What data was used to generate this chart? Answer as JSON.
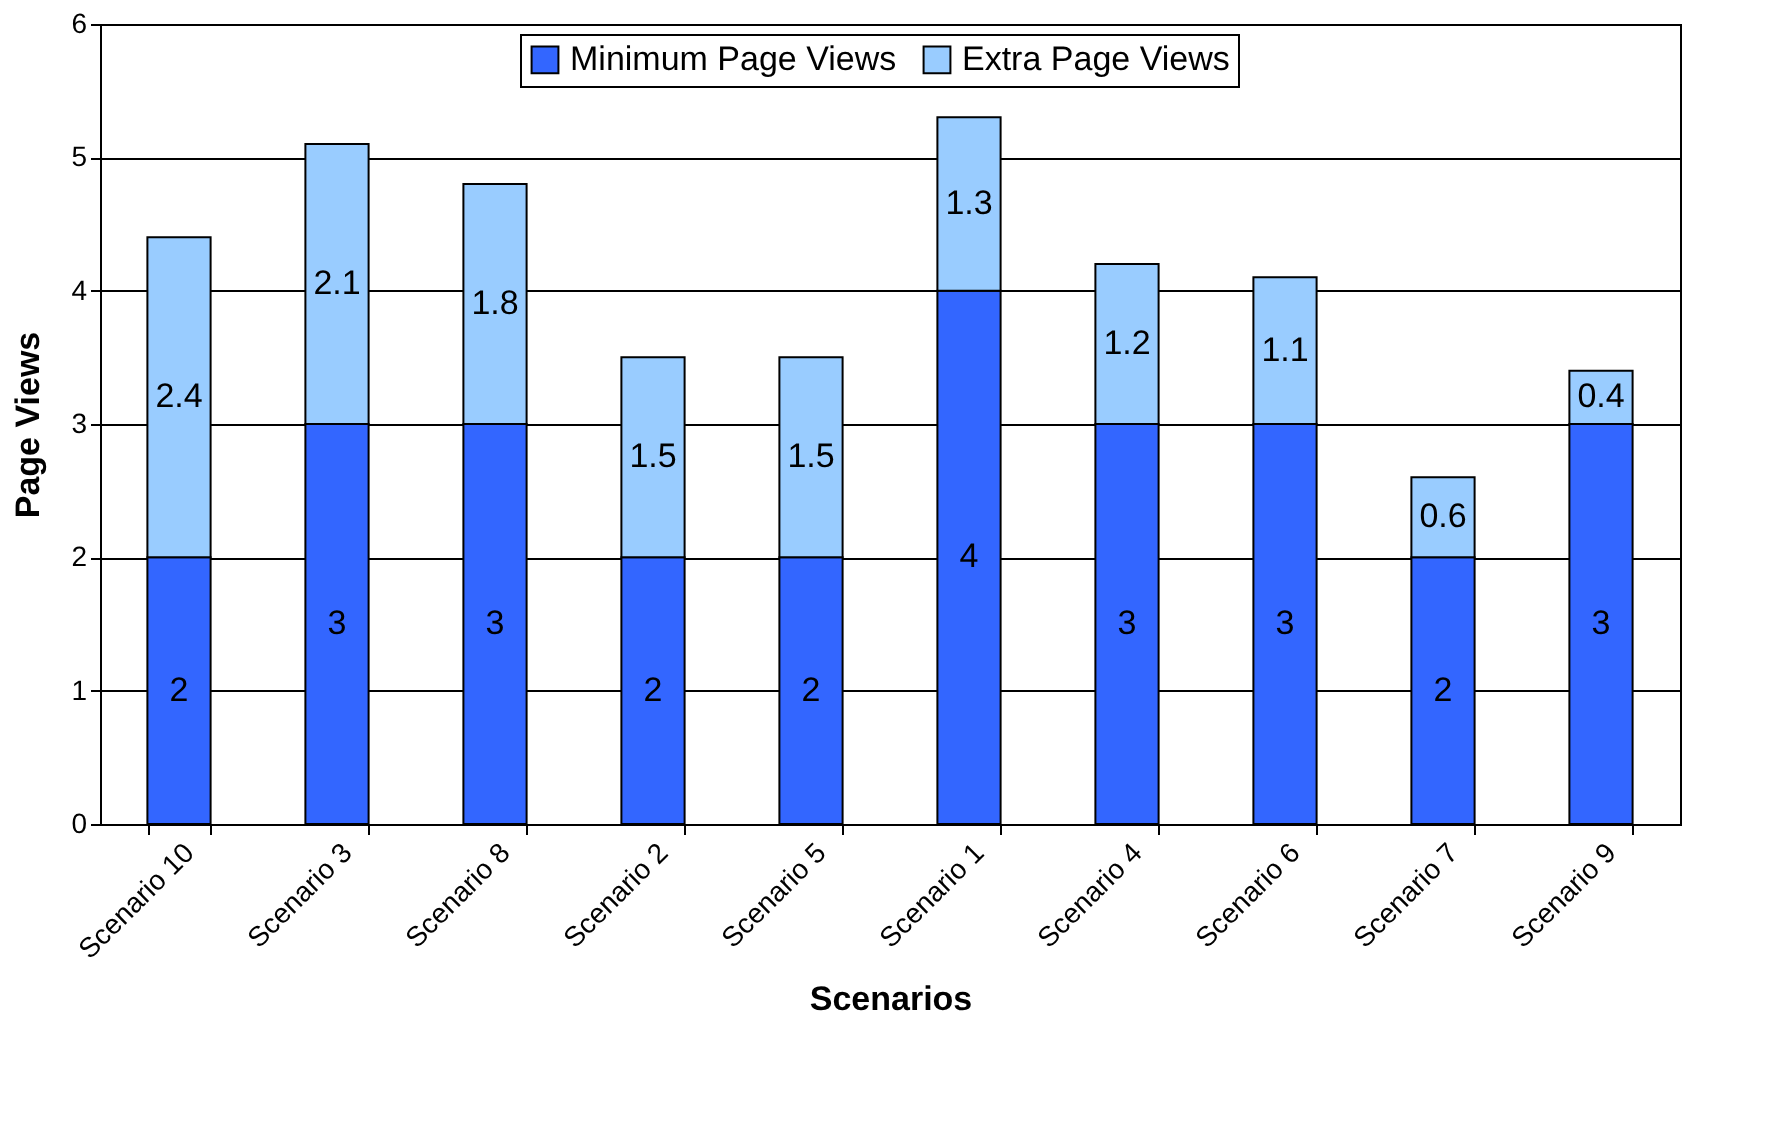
{
  "chart_data": {
    "type": "bar",
    "stacked": true,
    "xlabel": "Scenarios",
    "ylabel": "Page Views",
    "categories": [
      "Scenario 10",
      "Scenario 3",
      "Scenario 8",
      "Scenario 2",
      "Scenario 5",
      "Scenario 1",
      "Scenario 4",
      "Scenario 6",
      "Scenario 7",
      "Scenario 9"
    ],
    "series": [
      {
        "name": "Minimum Page Views",
        "color": "#3366ff",
        "values": [
          2,
          3,
          3,
          2,
          2,
          4,
          3,
          3,
          2,
          3
        ]
      },
      {
        "name": "Extra Page Views",
        "color": "#99ccff",
        "values": [
          2.4,
          2.1,
          1.8,
          1.5,
          1.5,
          1.3,
          1.2,
          1.1,
          0.6,
          0.4
        ]
      }
    ],
    "ylim": [
      0,
      6
    ],
    "yticks": [
      0,
      1,
      2,
      3,
      4,
      5,
      6
    ],
    "grid": "y",
    "legend": "top",
    "data_labels": true
  }
}
